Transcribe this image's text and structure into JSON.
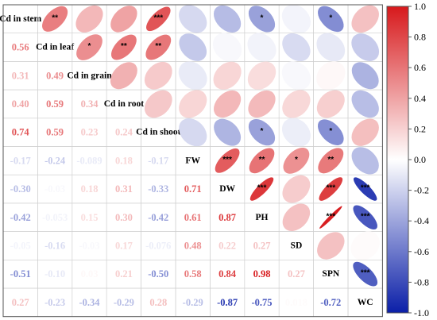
{
  "chart_data": {
    "type": "heatmap",
    "variables": [
      "Cd in stem",
      "Cd in leaf",
      "Cd in grain",
      "Cd in root",
      "Cd in shoot",
      "FW",
      "DW",
      "PH",
      "SD",
      "SPN",
      "WC"
    ],
    "correlation_matrix": [
      [
        1,
        0.56,
        0.31,
        0.4,
        0.74,
        -0.17,
        -0.3,
        -0.42,
        -0.05,
        -0.51,
        0.27
      ],
      [
        0.56,
        1,
        0.49,
        0.59,
        0.59,
        -0.24,
        -0.03,
        -0.053,
        -0.16,
        -0.1,
        -0.23
      ],
      [
        0.31,
        0.49,
        1,
        0.34,
        0.23,
        -0.089,
        0.18,
        0.15,
        -0.03,
        0.03,
        -0.34
      ],
      [
        0.4,
        0.59,
        0.34,
        1,
        0.24,
        0.18,
        0.31,
        0.3,
        0.17,
        0.21,
        -0.29
      ],
      [
        0.74,
        0.59,
        0.23,
        0.24,
        1,
        -0.17,
        -0.33,
        -0.42,
        -0.076,
        -0.5,
        0.28
      ],
      [
        -0.17,
        -0.24,
        -0.089,
        0.18,
        -0.17,
        1,
        0.71,
        0.61,
        0.48,
        0.58,
        -0.29
      ],
      [
        -0.3,
        -0.03,
        0.18,
        0.31,
        -0.33,
        0.71,
        1,
        0.87,
        0.22,
        0.84,
        -0.87
      ],
      [
        -0.42,
        -0.053,
        0.15,
        0.3,
        -0.42,
        0.61,
        0.87,
        1,
        0.27,
        0.98,
        -0.75
      ],
      [
        -0.05,
        -0.16,
        -0.03,
        0.17,
        -0.076,
        0.48,
        0.22,
        0.27,
        1,
        0.27,
        0.018
      ],
      [
        -0.51,
        -0.1,
        0.03,
        0.21,
        -0.5,
        0.58,
        0.84,
        0.98,
        0.27,
        1,
        -0.72
      ],
      [
        0.27,
        -0.23,
        -0.34,
        -0.29,
        0.28,
        -0.29,
        -0.87,
        -0.75,
        0.018,
        -0.72,
        1
      ]
    ],
    "significance_upper": [
      [
        "",
        "**",
        "",
        "",
        "***",
        "",
        "",
        "*",
        "",
        "*",
        ""
      ],
      [
        "",
        "",
        "*",
        "**",
        "**",
        "",
        "",
        "",
        "",
        "",
        ""
      ],
      [
        "",
        "",
        "",
        "",
        "",
        "",
        "",
        "",
        "",
        "",
        ""
      ],
      [
        "",
        "",
        "",
        "",
        "",
        "",
        "",
        "",
        "",
        "",
        ""
      ],
      [
        "",
        "",
        "",
        "",
        "",
        "",
        "",
        "*",
        "",
        "*",
        ""
      ],
      [
        "",
        "",
        "",
        "",
        "",
        "",
        "***",
        "**",
        "*",
        "**",
        ""
      ],
      [
        "",
        "",
        "",
        "",
        "",
        "",
        "",
        "***",
        "",
        "***",
        "***"
      ],
      [
        "",
        "",
        "",
        "",
        "",
        "",
        "",
        "",
        "",
        "***",
        "***"
      ],
      [
        "",
        "",
        "",
        "",
        "",
        "",
        "",
        "",
        "",
        "",
        ""
      ],
      [
        "",
        "",
        "",
        "",
        "",
        "",
        "",
        "",
        "",
        "",
        "***"
      ],
      [
        "",
        "",
        "",
        "",
        "",
        "",
        "",
        "",
        "",
        "",
        ""
      ]
    ],
    "colorbar": {
      "min": -1.0,
      "max": 1.0,
      "ticks": [
        "1.0",
        "0.8",
        "0.6",
        "0.4",
        "0.2",
        "0.0",
        "-0.2",
        "-0.4",
        "-0.6",
        "-0.8",
        "-1.0"
      ]
    },
    "colors": {
      "positive": "#d7191c",
      "negative": "#0b1fa8",
      "neutral": "#ffffff"
    },
    "lower_triangle": "numbers",
    "upper_triangle": "ellipses",
    "diagonal": "variable names"
  }
}
